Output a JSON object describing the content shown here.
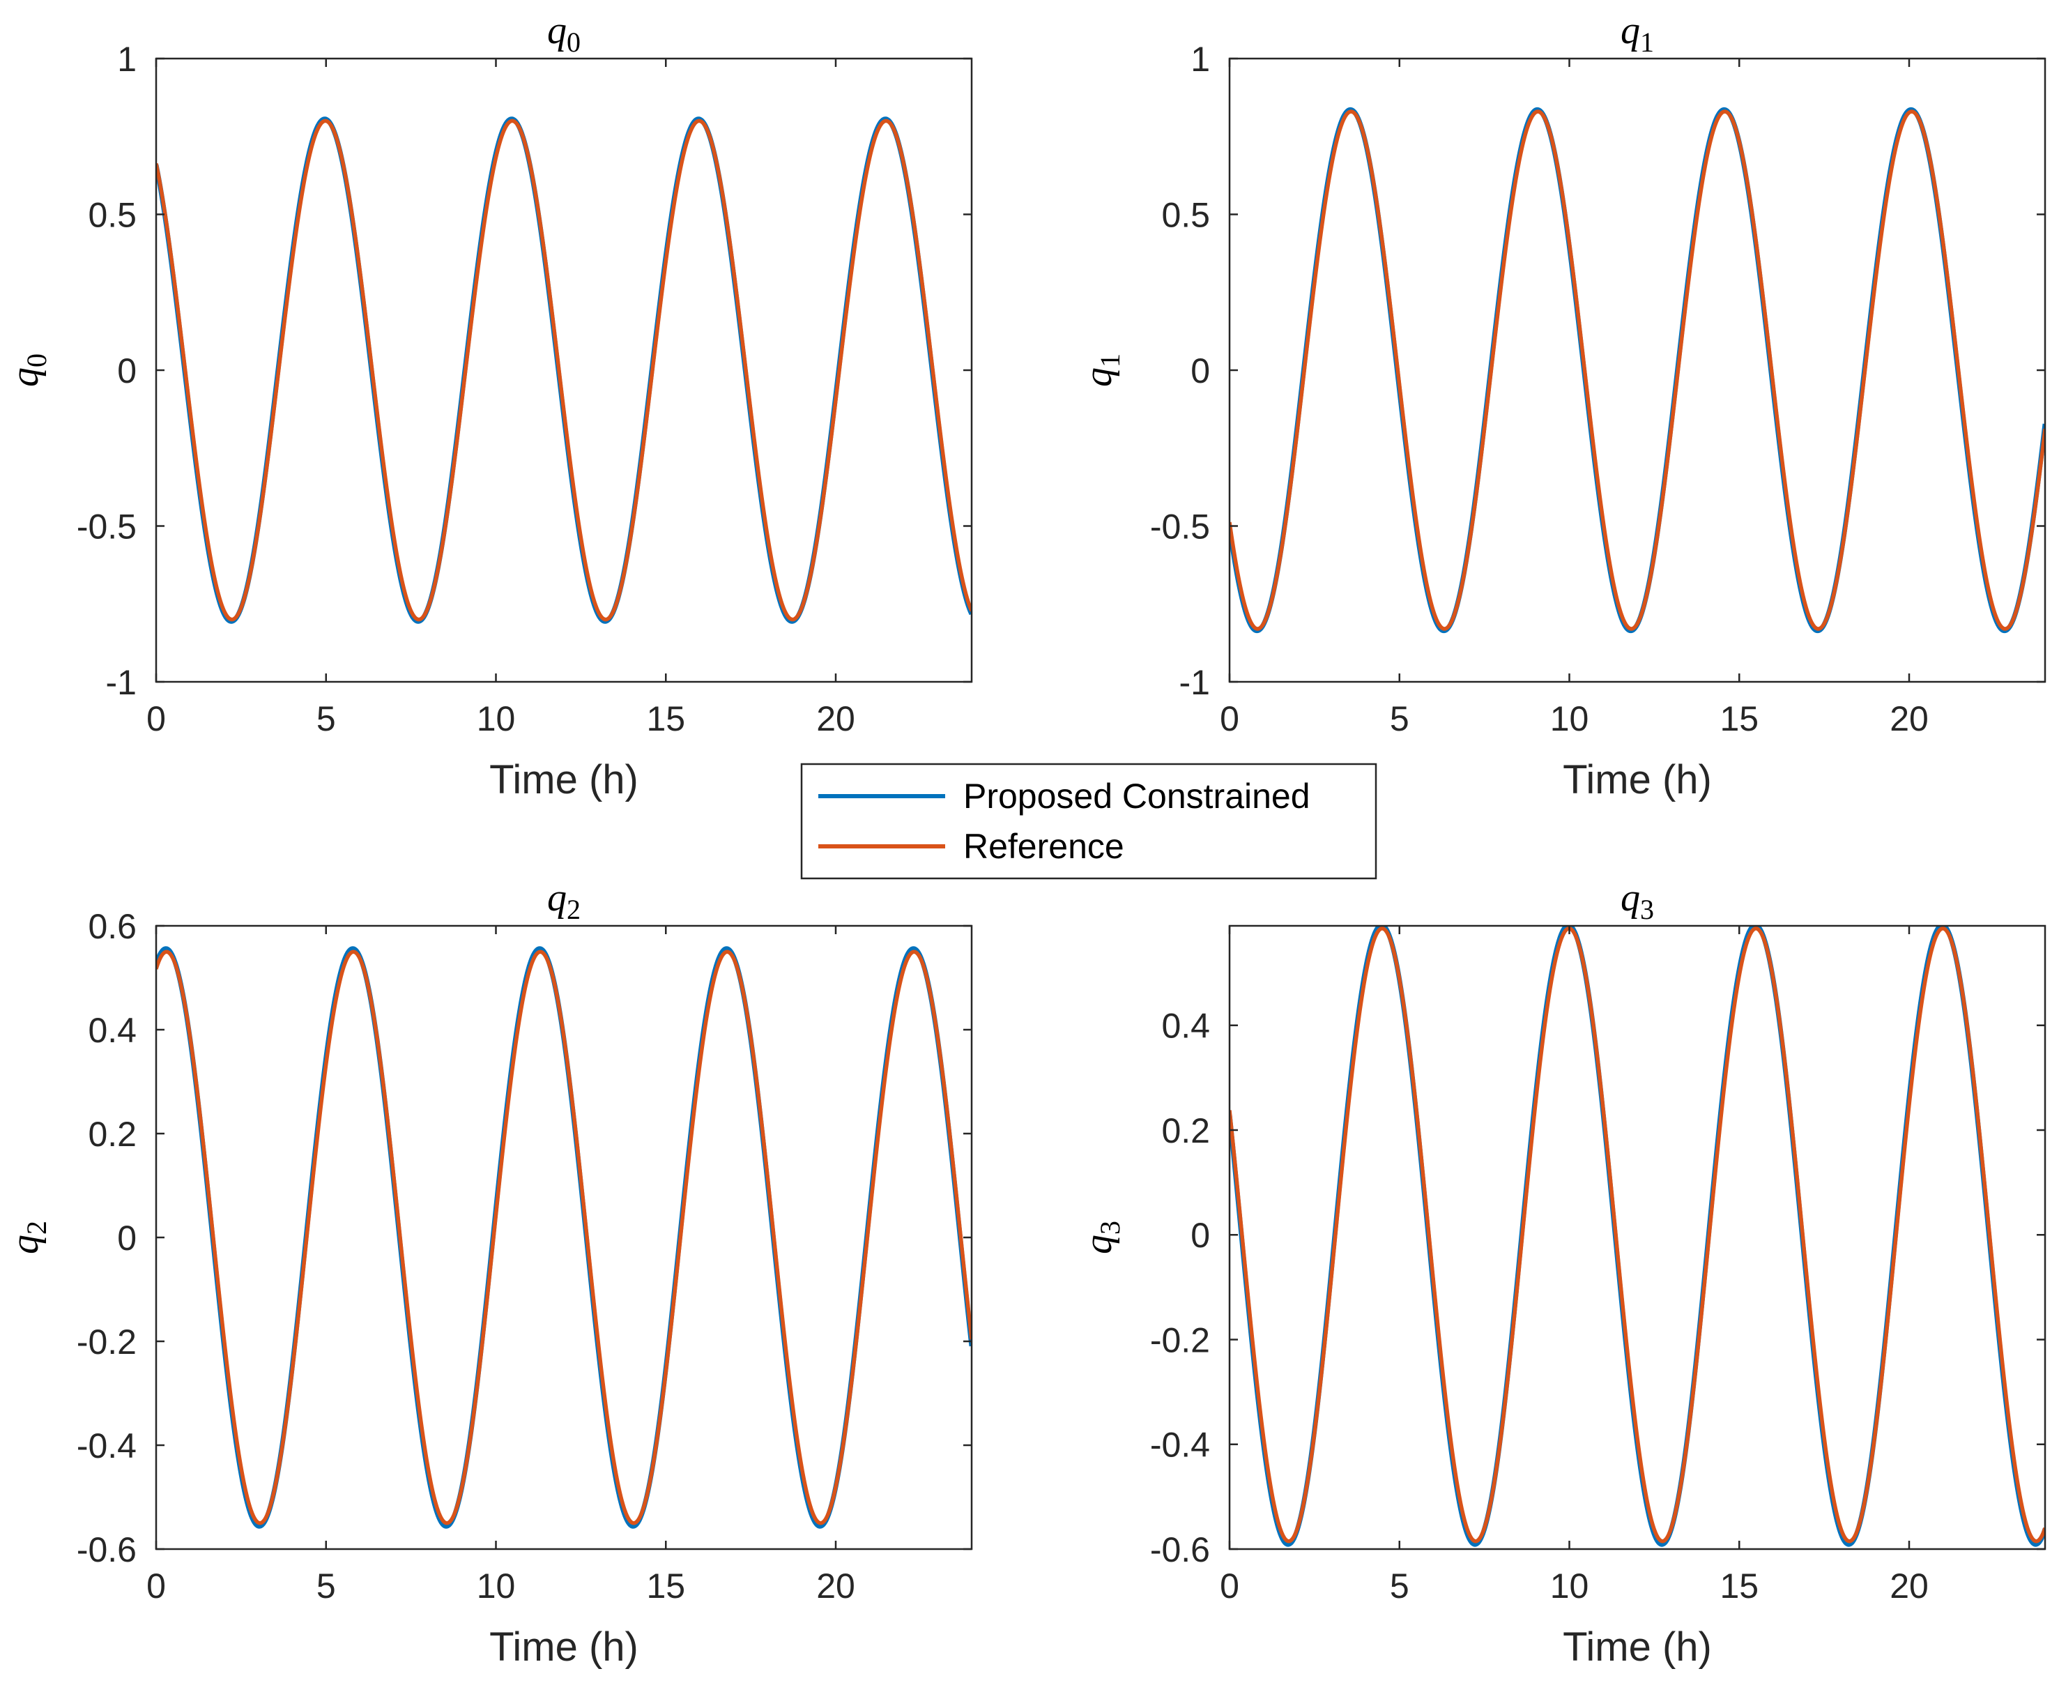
{
  "chart_data": [
    {
      "type": "line",
      "title": "q0",
      "title_base": "q",
      "title_sub": "0",
      "xlabel": "Time (h)",
      "ylabel_base": "q",
      "ylabel_sub": "0",
      "xlim": [
        0,
        24
      ],
      "ylim": [
        -1,
        1
      ],
      "xticks": [
        0,
        5,
        10,
        15,
        20
      ],
      "xtick_labels": [
        "0",
        "5",
        "10",
        "15",
        "20"
      ],
      "yticks": [
        -1,
        -0.5,
        0,
        0.5,
        1
      ],
      "ytick_labels": [
        "-1",
        "-0.5",
        "0",
        "0.5",
        "1"
      ],
      "wave": {
        "amplitude": 0.8,
        "period": 5.5,
        "phase_deg": 124,
        "t0": 0,
        "t1": 24
      },
      "series": [
        {
          "name": "Proposed Constrained",
          "color": "#0072BD"
        },
        {
          "name": "Reference",
          "color": "#D95319"
        }
      ]
    },
    {
      "type": "line",
      "title": "q1",
      "title_base": "q",
      "title_sub": "1",
      "xlabel": "Time (h)",
      "ylabel_base": "q",
      "ylabel_sub": "1",
      "xlim": [
        0,
        24
      ],
      "ylim": [
        -1,
        1
      ],
      "xticks": [
        0,
        5,
        10,
        15,
        20
      ],
      "xtick_labels": [
        "0",
        "5",
        "10",
        "15",
        "20"
      ],
      "yticks": [
        -1,
        -0.5,
        0,
        0.5,
        1
      ],
      "ytick_labels": [
        "-1",
        "-0.5",
        "0",
        "0.5",
        "1"
      ],
      "wave": {
        "amplitude": 0.83,
        "period": 5.5,
        "phase_deg": 216,
        "t0": 0,
        "t1": 24
      },
      "series": [
        {
          "name": "Proposed Constrained",
          "color": "#0072BD"
        },
        {
          "name": "Reference",
          "color": "#D95319"
        }
      ]
    },
    {
      "type": "line",
      "title": "q2",
      "title_base": "q",
      "title_sub": "2",
      "xlabel": "Time (h)",
      "ylabel_base": "q",
      "ylabel_sub": "2",
      "xlim": [
        0,
        24
      ],
      "ylim": [
        -0.6,
        0.6
      ],
      "xticks": [
        0,
        5,
        10,
        15,
        20
      ],
      "xtick_labels": [
        "0",
        "5",
        "10",
        "15",
        "20"
      ],
      "yticks": [
        -0.6,
        -0.4,
        -0.2,
        0,
        0.2,
        0.4,
        0.6
      ],
      "ytick_labels": [
        "-0.6",
        "-0.4",
        "-0.2",
        "0",
        "0.2",
        "0.4",
        "0.6"
      ],
      "wave": {
        "amplitude": 0.55,
        "period": 5.5,
        "phase_deg": 70,
        "t0": 0,
        "t1": 24
      },
      "series": [
        {
          "name": "Proposed Constrained",
          "color": "#0072BD"
        },
        {
          "name": "Reference",
          "color": "#D95319"
        }
      ]
    },
    {
      "type": "line",
      "title": "q3",
      "title_base": "q",
      "title_sub": "3",
      "xlabel": "Time (h)",
      "ylabel_base": "q",
      "ylabel_sub": "3",
      "xlim": [
        0,
        24
      ],
      "ylim": [
        -0.6,
        0.59
      ],
      "xticks": [
        0,
        5,
        10,
        15,
        20
      ],
      "xtick_labels": [
        "0",
        "5",
        "10",
        "15",
        "20"
      ],
      "yticks": [
        -0.6,
        -0.4,
        -0.2,
        0,
        0.2,
        0.4
      ],
      "ytick_labels": [
        "-0.6",
        "-0.4",
        "-0.2",
        "0",
        "0.2",
        "0.4"
      ],
      "wave": {
        "amplitude": 0.585,
        "period": 5.5,
        "phase_deg": 156,
        "t0": 0,
        "t1": 24
      },
      "series": [
        {
          "name": "Proposed Constrained",
          "color": "#0072BD"
        },
        {
          "name": "Reference",
          "color": "#D95319"
        }
      ]
    }
  ],
  "legend": {
    "entries": [
      {
        "label": "Proposed Constrained",
        "color": "#0072BD"
      },
      {
        "label": "Reference",
        "color": "#D95319"
      }
    ],
    "placement": "center"
  }
}
